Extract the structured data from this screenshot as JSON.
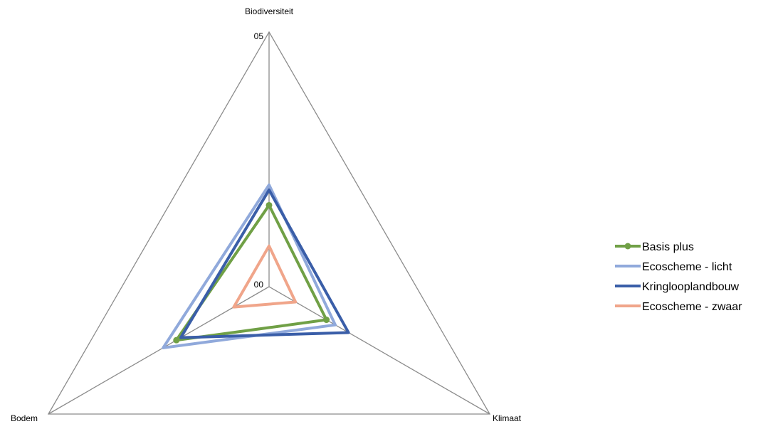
{
  "chart_data": {
    "type": "radar",
    "axes": [
      "Biodiversiteit",
      "Klimaat",
      "Bodem"
    ],
    "range": [
      0,
      5
    ],
    "tick_labels": {
      "min": "00",
      "max": "05"
    },
    "grid": true,
    "legend_position": "right",
    "series": [
      {
        "name": "Basis plus",
        "values": [
          1.6,
          1.3,
          2.1
        ],
        "color": "#70a046",
        "marker": true
      },
      {
        "name": "Ecoscheme - licht",
        "values": [
          2.0,
          1.5,
          2.4
        ],
        "color": "#90a9db",
        "marker": false
      },
      {
        "name": "Kringlooplandbouw",
        "values": [
          1.9,
          1.8,
          2.0
        ],
        "color": "#3a5ea8",
        "marker": false
      },
      {
        "name": "Ecoscheme - zwaar",
        "values": [
          0.8,
          0.6,
          0.8
        ],
        "color": "#f0a58a",
        "marker": false
      }
    ]
  }
}
